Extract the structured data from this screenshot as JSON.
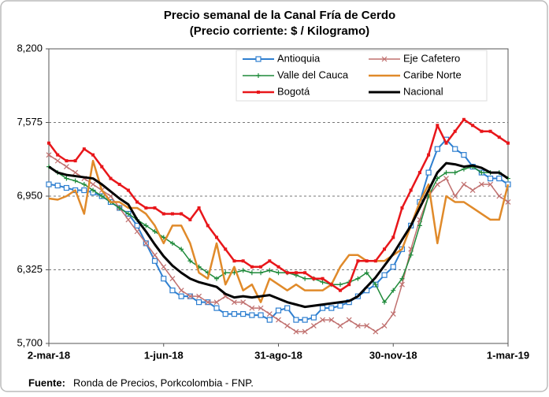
{
  "chart_data": {
    "type": "line",
    "title": [
      "Precio semanal de la Canal Fría de Cerdo",
      "(Precio corriente: $ / Kilogramo)"
    ],
    "categories": [
      "2-mar-18",
      null,
      null,
      null,
      null,
      null,
      null,
      null,
      null,
      null,
      null,
      null,
      null,
      "1-jun-18",
      null,
      null,
      null,
      null,
      null,
      null,
      null,
      null,
      null,
      null,
      null,
      null,
      "31-ago-18",
      null,
      null,
      null,
      null,
      null,
      null,
      null,
      null,
      null,
      null,
      null,
      null,
      "30-nov-18",
      null,
      null,
      null,
      null,
      null,
      null,
      null,
      null,
      null,
      null,
      null,
      null,
      "1-mar-19"
    ],
    "ylim": [
      5700,
      8200
    ],
    "yticks": [
      {
        "value": 5700,
        "label": "5,700"
      },
      {
        "value": 6325,
        "label": "6,325"
      },
      {
        "value": 6950,
        "label": "6,950"
      },
      {
        "value": 7575,
        "label": "7,575"
      },
      {
        "value": 8200,
        "label": "8,200"
      }
    ],
    "grid": true,
    "legend": "top-right",
    "series": [
      {
        "name": "Antioquia",
        "color": "#2e7fd0",
        "marker": "square-open",
        "width": 2,
        "values": [
          7050,
          7040,
          7020,
          7000,
          7000,
          6980,
          6950,
          6900,
          6850,
          6800,
          6700,
          6550,
          6400,
          6250,
          6150,
          6100,
          6100,
          6050,
          6050,
          6000,
          5950,
          5950,
          5950,
          5940,
          5940,
          5900,
          5980,
          6000,
          5900,
          5900,
          5920,
          6000,
          6000,
          6020,
          6050,
          6100,
          6150,
          6200,
          6280,
          6350,
          6500,
          6700,
          6900,
          7150,
          7350,
          7430,
          7350,
          7300,
          7200,
          7150,
          7100,
          7100,
          7050
        ]
      },
      {
        "name": "Eje Cafetero",
        "color": "#c0706f",
        "marker": "x",
        "width": 1.5,
        "values": [
          7300,
          7250,
          7200,
          7150,
          7100,
          7050,
          7000,
          6950,
          6850,
          6750,
          6650,
          6550,
          6450,
          6350,
          6250,
          6150,
          6100,
          6100,
          6050,
          6050,
          6100,
          6050,
          6050,
          6000,
          6000,
          5950,
          5900,
          5850,
          5800,
          5800,
          5850,
          5900,
          5900,
          5850,
          5900,
          5850,
          5850,
          5800,
          5850,
          5950,
          6200,
          6500,
          6750,
          6950,
          7050,
          7100,
          6950,
          7050,
          7000,
          7050,
          7050,
          6950,
          6900
        ]
      },
      {
        "name": "Valle del Cauca",
        "color": "#1e8a3a",
        "marker": "plus",
        "width": 1.5,
        "values": [
          7200,
          7150,
          7100,
          7080,
          7050,
          7000,
          6950,
          6900,
          6850,
          6800,
          6750,
          6700,
          6650,
          6600,
          6550,
          6500,
          6400,
          6350,
          6300,
          6250,
          6300,
          6300,
          6320,
          6300,
          6300,
          6320,
          6300,
          6300,
          6280,
          6250,
          6250,
          6220,
          6200,
          6200,
          6220,
          6250,
          6300,
          6200,
          6050,
          6150,
          6250,
          6450,
          6700,
          6950,
          7100,
          7150,
          7150,
          7180,
          7200,
          7150,
          7150,
          7150,
          7100
        ]
      },
      {
        "name": "Caribe Norte",
        "color": "#e08a2a",
        "marker": "none",
        "width": 2.5,
        "values": [
          6930,
          6920,
          6950,
          7000,
          6800,
          7250,
          7000,
          6900,
          6900,
          6850,
          6850,
          6800,
          6700,
          6550,
          6700,
          6700,
          6550,
          6300,
          6250,
          6550,
          6200,
          6350,
          6150,
          6200,
          6050,
          6250,
          6200,
          6150,
          6200,
          6150,
          6150,
          6150,
          6200,
          6350,
          6450,
          6450,
          6400,
          6400,
          6400,
          6450,
          6500,
          6700,
          6900,
          7050,
          6550,
          6950,
          6900,
          6900,
          6850,
          6800,
          6750,
          6750,
          7050
        ]
      },
      {
        "name": "Bogotá",
        "color": "#e8161a",
        "marker": "square",
        "width": 2.5,
        "dash": true,
        "values": [
          7400,
          7300,
          7250,
          7250,
          7350,
          7300,
          7200,
          7100,
          7050,
          7000,
          6900,
          6850,
          6850,
          6800,
          6800,
          6800,
          6750,
          6850,
          6700,
          6600,
          6500,
          6400,
          6400,
          6350,
          6350,
          6400,
          6350,
          6300,
          6300,
          6300,
          6250,
          6250,
          6200,
          6150,
          6200,
          6400,
          6400,
          6400,
          6500,
          6600,
          6850,
          7000,
          7150,
          7300,
          7550,
          7400,
          7500,
          7600,
          7550,
          7500,
          7500,
          7450,
          7400
        ]
      },
      {
        "name": "Nacional",
        "color": "#000000",
        "marker": "none",
        "width": 3,
        "values": [
          7200,
          7150,
          7130,
          7120,
          7110,
          7100,
          7050,
          6990,
          6930,
          6880,
          6750,
          6650,
          6540,
          6440,
          6360,
          6300,
          6250,
          6220,
          6200,
          6180,
          6120,
          6090,
          6100,
          6090,
          6100,
          6110,
          6080,
          6050,
          6030,
          6010,
          6020,
          6030,
          6040,
          6050,
          6060,
          6100,
          6180,
          6260,
          6360,
          6460,
          6580,
          6700,
          6850,
          7000,
          7150,
          7230,
          7220,
          7200,
          7210,
          7190,
          7150,
          7150,
          7100
        ]
      }
    ]
  },
  "source_label": "Fuente:",
  "source_text": "Ronda de Precios, Porkcolombia  - FNP."
}
